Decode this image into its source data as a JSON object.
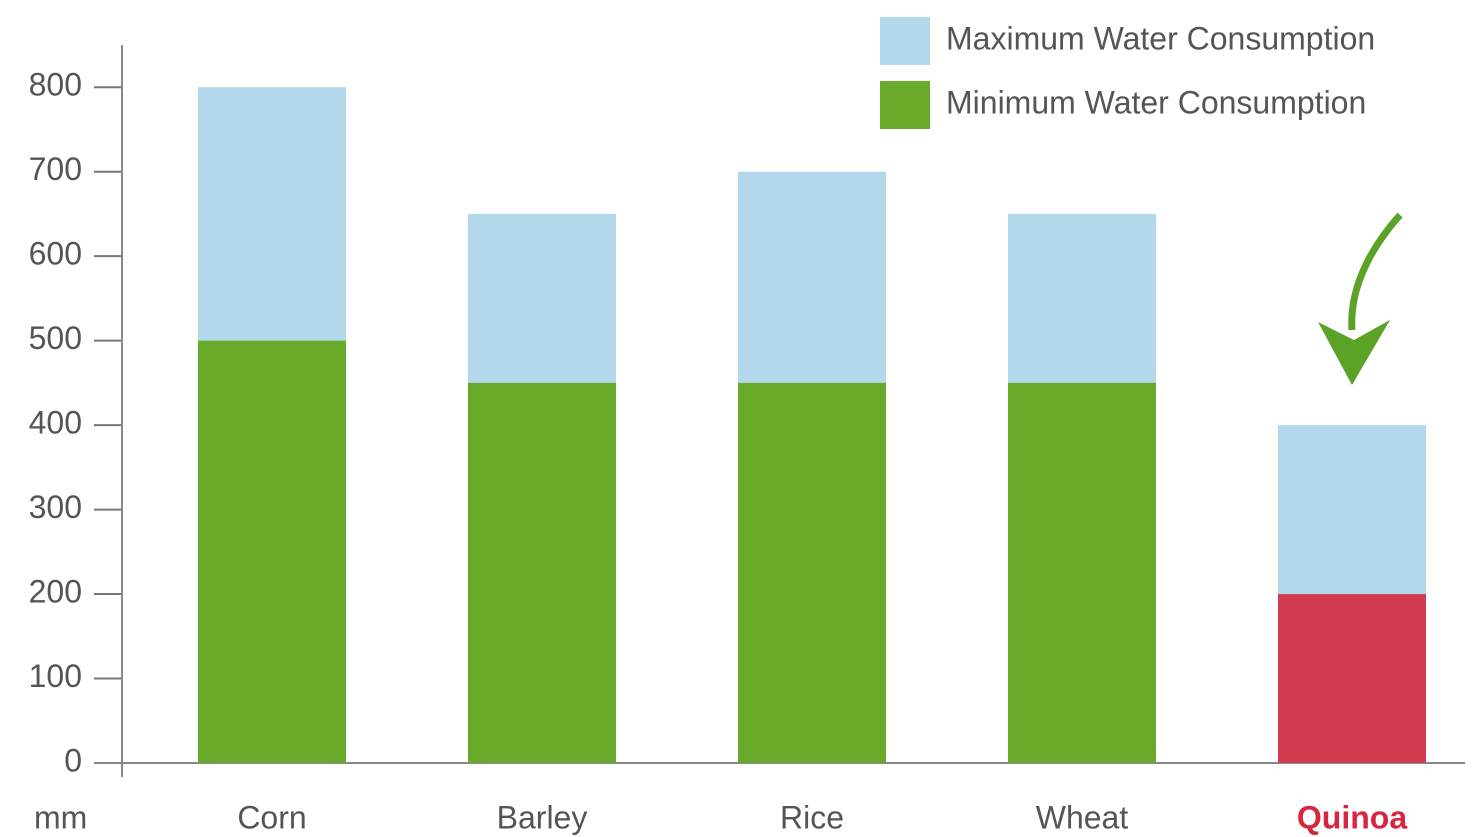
{
  "chart_data": {
    "type": "bar",
    "bar_mode": "overlay",
    "y_label": "mm",
    "categories": [
      "Corn",
      "Barley",
      "Rice",
      "Wheat",
      "Quinoa"
    ],
    "category_label_colors": [
      "#555555",
      "#555555",
      "#555555",
      "#555555",
      "#d7263d"
    ],
    "series": [
      {
        "name": "Maximum Water Consumption",
        "color": "#b3d8ec",
        "values": [
          800,
          650,
          700,
          650,
          400
        ]
      },
      {
        "name": "Minimum Water Consumption",
        "color": "#6aaa2a",
        "colors": [
          "#6aaa2a",
          "#6aaa2a",
          "#6aaa2a",
          "#6aaa2a",
          "#d23a4f"
        ],
        "values": [
          500,
          450,
          450,
          450,
          200
        ]
      }
    ],
    "ylim": [
      0,
      850
    ],
    "yticks": [
      0,
      100,
      200,
      300,
      400,
      500,
      600,
      700,
      800
    ],
    "grid": false,
    "legend": "top-right"
  }
}
